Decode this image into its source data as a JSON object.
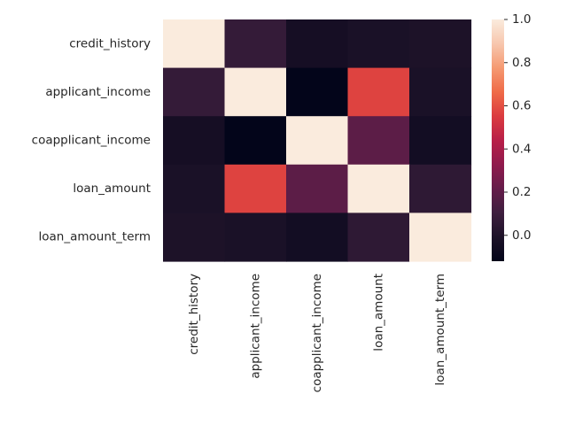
{
  "chart_data": {
    "type": "heatmap",
    "variables": [
      "credit_history",
      "applicant_income",
      "coapplicant_income",
      "loan_amount",
      "loan_amount_term"
    ],
    "matrix": [
      [
        1.0,
        0.07,
        -0.04,
        -0.02,
        -0.01
      ],
      [
        0.07,
        1.0,
        -0.12,
        0.57,
        -0.02
      ],
      [
        -0.04,
        -0.12,
        1.0,
        0.19,
        -0.05
      ],
      [
        -0.02,
        0.57,
        0.19,
        1.0,
        0.05
      ],
      [
        -0.01,
        -0.02,
        -0.05,
        0.05,
        1.0
      ]
    ],
    "colorbar": {
      "min": -0.12,
      "max": 1.0,
      "ticks": [
        0.0,
        0.2,
        0.4,
        0.6,
        0.8,
        1.0
      ],
      "tick_labels": [
        "0.0",
        "0.2",
        "0.4",
        "0.6",
        "0.8",
        "1.0"
      ],
      "colormap": "rocket",
      "stops": [
        "#03051a",
        "#1d1228",
        "#3e1f3f",
        "#651c4a",
        "#901a4d",
        "#b81f48",
        "#db3b3f",
        "#ef6b48",
        "#f59a72",
        "#f7c7ae",
        "#faebdd"
      ]
    },
    "title": "",
    "xlabel": "",
    "ylabel": "",
    "grid": false,
    "legend": "colorbar-right"
  }
}
